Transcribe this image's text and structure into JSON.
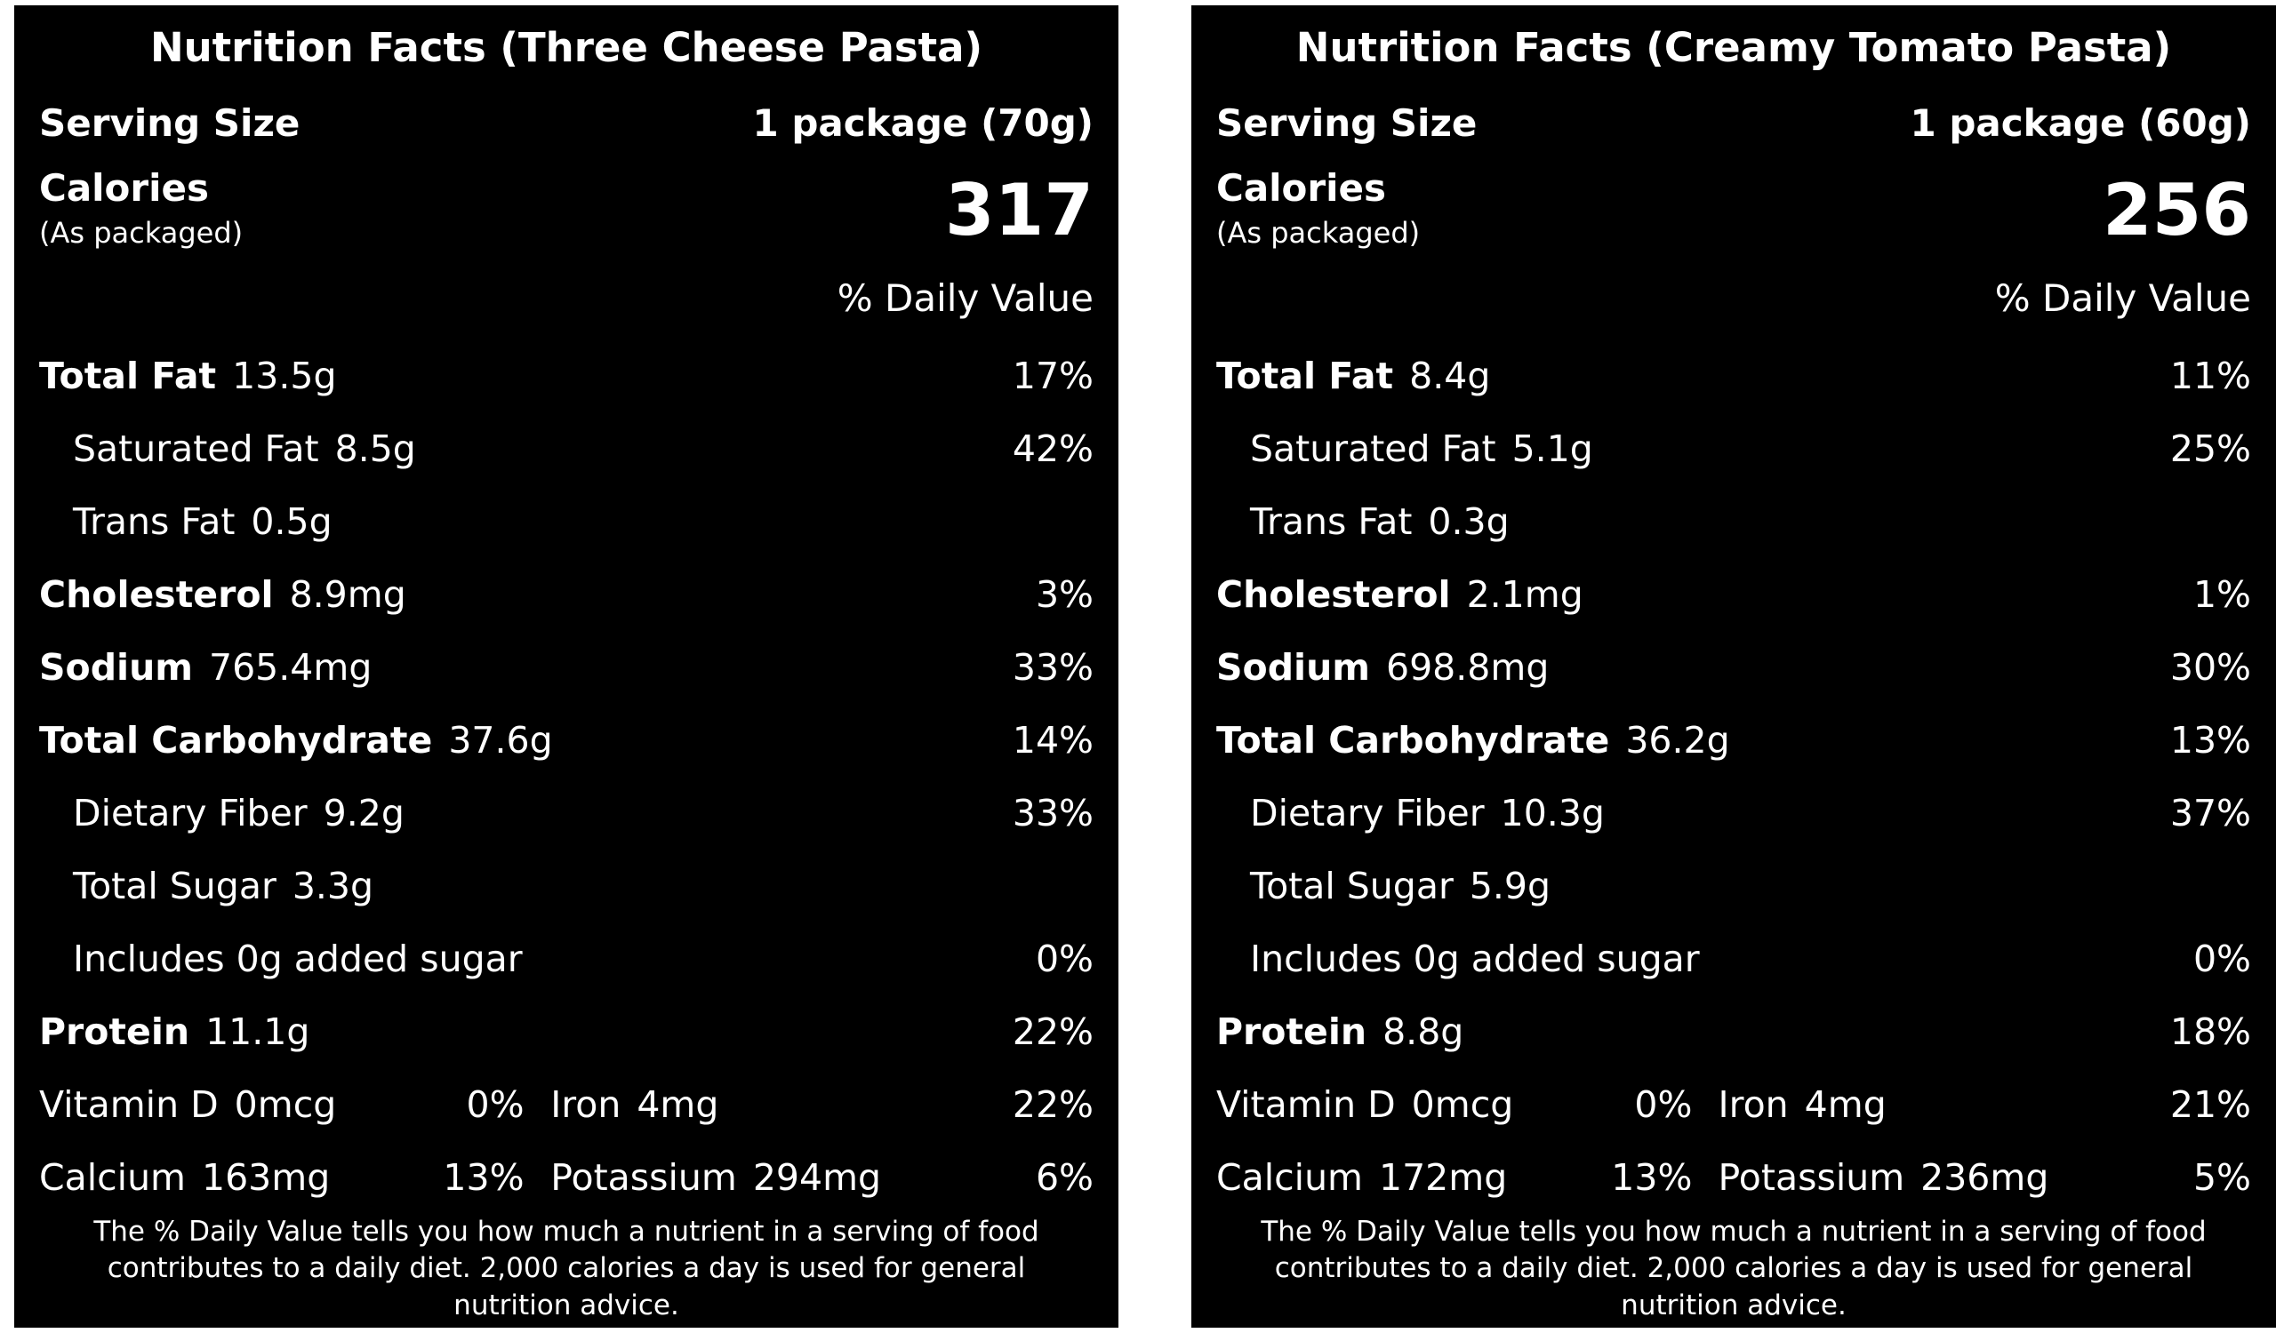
{
  "colors": {
    "panel_background": "#000000",
    "panel_text": "#ffffff",
    "page_background": "#ffffff"
  },
  "labels": [
    {
      "title": "Nutrition Facts (Three Cheese Pasta)",
      "serving_label": "Serving Size",
      "serving_value": "1 package (70g)",
      "calories_label": "Calories",
      "calories_note": "(As packaged)",
      "calories_value": "317",
      "dv_header": "% Daily Value",
      "rows": [
        {
          "name": "Total Fat",
          "amount": "13.5g",
          "dv": "17%"
        },
        {
          "name": "Saturated Fat",
          "amount": "8.5g",
          "dv": "42%"
        },
        {
          "name": "Trans Fat",
          "amount": "0.5g",
          "dv": ""
        },
        {
          "name": "Cholesterol",
          "amount": "8.9mg",
          "dv": "3%"
        },
        {
          "name": "Sodium",
          "amount": "765.4mg",
          "dv": "33%"
        },
        {
          "name": "Total Carbohydrate",
          "amount": "37.6g",
          "dv": "14%"
        },
        {
          "name": "Dietary Fiber",
          "amount": "9.2g",
          "dv": "33%"
        },
        {
          "name": "Total Sugar",
          "amount": "3.3g",
          "dv": ""
        },
        {
          "name": "Includes 0g added sugar",
          "amount": "",
          "dv": "0%"
        },
        {
          "name": "Protein",
          "amount": "11.1g",
          "dv": "22%"
        }
      ],
      "micros": [
        {
          "name": "Vitamin D",
          "amount": "0mcg",
          "dv": "0%",
          "name2": "Iron",
          "amount2": "4mg",
          "dv2": "22%"
        },
        {
          "name": "Calcium",
          "amount": "163mg",
          "dv": "13%",
          "name2": "Potassium",
          "amount2": "294mg",
          "dv2": "6%"
        }
      ],
      "footnote": "The % Daily Value tells you how much a nutrient in a serving of food contributes to a daily diet. 2,000 calories a day is used for general nutrition advice."
    },
    {
      "title": "Nutrition Facts (Creamy Tomato Pasta)",
      "serving_label": "Serving Size",
      "serving_value": "1 package (60g)",
      "calories_label": "Calories",
      "calories_note": "(As packaged)",
      "calories_value": "256",
      "dv_header": "% Daily Value",
      "rows": [
        {
          "name": "Total Fat",
          "amount": "8.4g",
          "dv": "11%"
        },
        {
          "name": "Saturated Fat",
          "amount": "5.1g",
          "dv": "25%"
        },
        {
          "name": "Trans Fat",
          "amount": "0.3g",
          "dv": ""
        },
        {
          "name": "Cholesterol",
          "amount": "2.1mg",
          "dv": "1%"
        },
        {
          "name": "Sodium",
          "amount": "698.8mg",
          "dv": "30%"
        },
        {
          "name": "Total Carbohydrate",
          "amount": "36.2g",
          "dv": "13%"
        },
        {
          "name": "Dietary Fiber",
          "amount": "10.3g",
          "dv": "37%"
        },
        {
          "name": "Total Sugar",
          "amount": "5.9g",
          "dv": ""
        },
        {
          "name": "Includes 0g added sugar",
          "amount": "",
          "dv": "0%"
        },
        {
          "name": "Protein",
          "amount": "8.8g",
          "dv": "18%"
        }
      ],
      "micros": [
        {
          "name": "Vitamin D",
          "amount": "0mcg",
          "dv": "0%",
          "name2": "Iron",
          "amount2": "4mg",
          "dv2": "21%"
        },
        {
          "name": "Calcium",
          "amount": "172mg",
          "dv": "13%",
          "name2": "Potassium",
          "amount2": "236mg",
          "dv2": "5%"
        }
      ],
      "footnote": "The % Daily Value tells you how much a nutrient in a serving of food contributes to a daily diet. 2,000 calories a day is used for general nutrition advice."
    }
  ]
}
